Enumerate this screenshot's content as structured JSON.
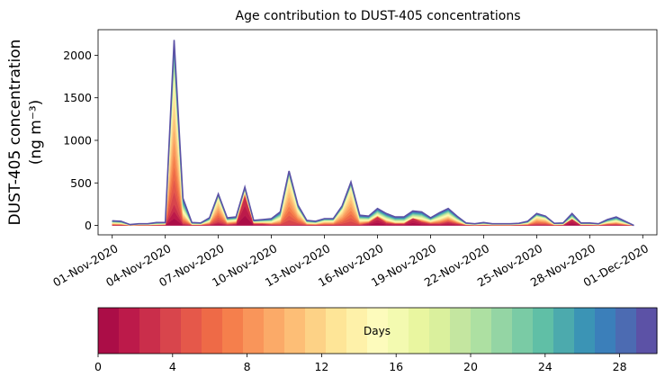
{
  "chart_data": {
    "type": "area",
    "stacked": true,
    "title": "Age contribution to DUST-405 concentrations",
    "ylabel_line1": "DUST-405 concentration",
    "ylabel_line2": "(ng m⁻³)",
    "ylim": [
      -110,
      2300
    ],
    "yticks": [
      0,
      500,
      1000,
      1500,
      2000
    ],
    "xlim": [
      -0.8,
      30.8
    ],
    "xtick_positions": [
      0,
      3,
      6,
      9,
      12,
      15,
      18,
      21,
      24,
      27,
      30
    ],
    "xtick_labels": [
      "01-Nov-2020",
      "04-Nov-2020",
      "07-Nov-2020",
      "10-Nov-2020",
      "13-Nov-2020",
      "16-Nov-2020",
      "19-Nov-2020",
      "22-Nov-2020",
      "25-Nov-2020",
      "28-Nov-2020",
      "01-Dec-2020"
    ],
    "x": [
      0,
      0.5,
      1,
      1.5,
      2,
      2.5,
      3,
      3.5,
      4,
      4.5,
      5,
      5.5,
      6,
      6.5,
      7,
      7.5,
      8,
      8.5,
      9,
      9.5,
      10,
      10.5,
      11,
      11.5,
      12,
      12.5,
      13,
      13.5,
      14,
      14.5,
      15,
      15.5,
      16,
      16.5,
      17,
      17.5,
      18,
      18.5,
      19,
      19.5,
      20,
      20.5,
      21,
      21.5,
      22,
      22.5,
      23,
      23.5,
      24,
      24.5,
      25,
      25.5,
      26,
      26.5,
      27,
      27.5,
      28,
      28.5,
      29,
      29.5
    ],
    "total": [
      55,
      50,
      10,
      20,
      20,
      35,
      35,
      2180,
      320,
      35,
      30,
      90,
      370,
      90,
      100,
      450,
      60,
      70,
      80,
      160,
      640,
      240,
      60,
      50,
      80,
      80,
      230,
      510,
      120,
      110,
      200,
      140,
      100,
      100,
      170,
      160,
      90,
      150,
      200,
      110,
      30,
      20,
      35,
      20,
      20,
      20,
      25,
      50,
      140,
      110,
      25,
      30,
      140,
      30,
      30,
      20,
      70,
      100,
      50,
      0
    ],
    "mid": [
      30,
      25,
      5,
      10,
      10,
      15,
      20,
      1750,
      160,
      15,
      15,
      50,
      320,
      50,
      60,
      400,
      40,
      40,
      40,
      80,
      560,
      180,
      30,
      25,
      50,
      50,
      180,
      440,
      60,
      60,
      120,
      70,
      40,
      40,
      90,
      80,
      50,
      80,
      120,
      60,
      15,
      10,
      15,
      10,
      10,
      10,
      15,
      25,
      100,
      80,
      12,
      15,
      80,
      15,
      15,
      10,
      35,
      50,
      25,
      0
    ],
    "young": [
      5,
      5,
      0,
      2,
      2,
      5,
      5,
      250,
      20,
      5,
      5,
      10,
      40,
      10,
      20,
      350,
      20,
      20,
      10,
      5,
      10,
      10,
      5,
      5,
      5,
      5,
      5,
      5,
      5,
      30,
      100,
      30,
      20,
      20,
      120,
      40,
      20,
      20,
      40,
      20,
      5,
      2,
      5,
      2,
      2,
      2,
      5,
      5,
      10,
      10,
      2,
      5,
      120,
      5,
      5,
      2,
      10,
      10,
      5,
      0
    ],
    "colorbar": {
      "label": "Days",
      "min": 0,
      "max": 30,
      "ticks": [
        0,
        4,
        8,
        12,
        16,
        20,
        24,
        28
      ],
      "colors": [
        "#ab0d47",
        "#bc1a4a",
        "#ca2e4b",
        "#d8454c",
        "#e5584a",
        "#ee6a47",
        "#f57f4c",
        "#f9955a",
        "#fbaa68",
        "#fdbe76",
        "#fdd286",
        "#fee597",
        "#fef1a9",
        "#fdfbbc",
        "#f3fab0",
        "#e9f6a0",
        "#daf09d",
        "#c4e6a0",
        "#ade0a2",
        "#94d5a4",
        "#7acba5",
        "#60bfa6",
        "#4caaad",
        "#3b94b5",
        "#3b7fba",
        "#4c6bb2",
        "#5c52a6"
      ]
    }
  }
}
